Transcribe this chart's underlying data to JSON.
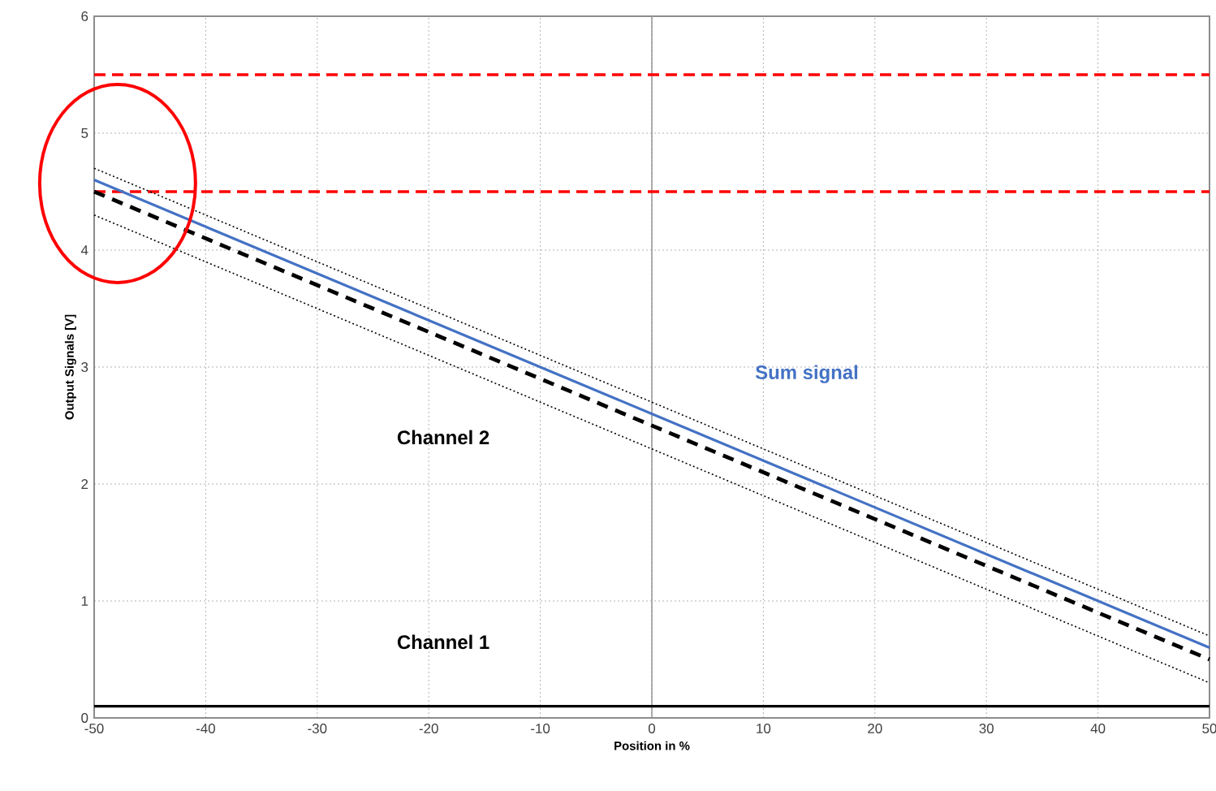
{
  "chart_data": {
    "type": "line",
    "xlabel": "Position in %",
    "ylabel": "Output Signals [V]",
    "xlim": [
      -50,
      50
    ],
    "xticks": [
      -50,
      -40,
      -30,
      -20,
      -10,
      0,
      10,
      20,
      30,
      40,
      50
    ],
    "ylim": [
      0,
      6
    ],
    "yticks": [
      0,
      1,
      2,
      3,
      4,
      5,
      6
    ],
    "grid": true,
    "marker": "none",
    "x": [
      -50,
      50
    ],
    "annotations": [
      "Channel 2"
    ],
    "series": [
      {
        "name": "Channel 1",
        "color": "#000000",
        "line_style": "solid",
        "values": [
          0.1,
          0.1
        ]
      },
      {
        "color": "#000000",
        "line_style": "dashed",
        "values": [
          4.5,
          0.5
        ]
      },
      {
        "color": "#000000",
        "line_style": "dotted",
        "values": [
          4.7,
          0.7
        ]
      },
      {
        "color": "#000000",
        "line_style": "dotted",
        "values": [
          4.3,
          0.3
        ]
      },
      {
        "name": "Sum signal",
        "color": "#4472c4",
        "line_style": "solid",
        "values": [
          4.6,
          0.6
        ]
      }
    ],
    "ref_lines": [
      {
        "axis": "x",
        "value": 0,
        "color": "#999999",
        "line_style": "solid"
      },
      {
        "axis": "y",
        "value": 4.5,
        "color": "#ff0000",
        "line_style": "dashed"
      },
      {
        "axis": "y",
        "value": 5.5,
        "color": "#ff0000",
        "line_style": "dashed"
      }
    ]
  }
}
